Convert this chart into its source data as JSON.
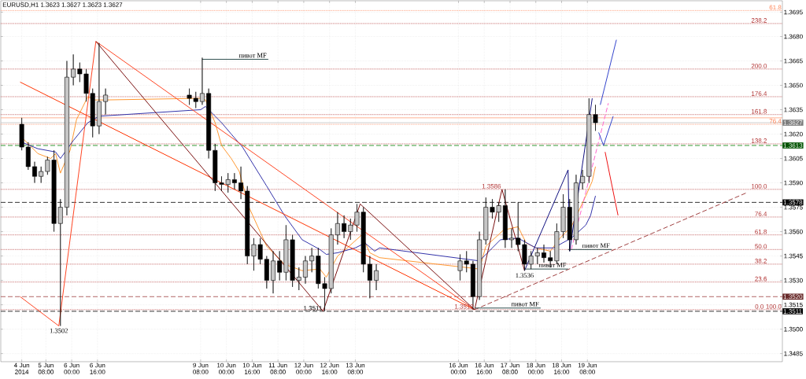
{
  "chart_data": {
    "type": "candlestick",
    "title": "EURUSD,H1 1.3623 1.3627 1.3623 1.3627",
    "x": [
      "2014-06-04T17:00",
      "2014-06-04T21:00",
      "2014-06-05T01:00",
      "2014-06-05T05:00",
      "2014-06-05T09:00",
      "2014-06-05T13:00",
      "2014-06-05T17:00",
      "2014-06-05T21:00",
      "2014-06-06T01:00",
      "2014-06-06T05:00",
      "2014-06-06T09:00",
      "2014-06-06T13:00",
      "2014-06-06T17:00",
      "2014-06-06T21:00",
      "2014-06-09T01:00",
      "2014-06-09T05:00",
      "2014-06-09T09:00",
      "2014-06-09T13:00",
      "2014-06-09T17:00",
      "2014-06-09T21:00",
      "2014-06-10T01:00",
      "2014-06-10T05:00",
      "2014-06-10T09:00",
      "2014-06-10T13:00",
      "2014-06-10T17:00",
      "2014-06-10T21:00",
      "2014-06-11T01:00",
      "2014-06-11T05:00",
      "2014-06-11T09:00",
      "2014-06-11T13:00",
      "2014-06-11T17:00",
      "2014-06-11T21:00",
      "2014-06-12T01:00",
      "2014-06-12T05:00",
      "2014-06-12T09:00",
      "2014-06-12T13:00",
      "2014-06-12T17:00",
      "2014-06-12T21:00",
      "2014-06-13T01:00",
      "2014-06-13T05:00",
      "2014-06-13T09:00",
      "2014-06-13T13:00",
      "2014-06-13T17:00",
      "2014-06-13T21:00",
      "2014-06-16T01:00",
      "2014-06-16T05:00",
      "2014-06-16T09:00",
      "2014-06-16T13:00",
      "2014-06-16T17:00",
      "2014-06-16T21:00",
      "2014-06-17T01:00",
      "2014-06-17T05:00",
      "2014-06-17T09:00",
      "2014-06-17T13:00",
      "2014-06-17T17:00",
      "2014-06-17T21:00",
      "2014-06-18T01:00",
      "2014-06-18T05:00",
      "2014-06-18T09:00",
      "2014-06-18T13:00",
      "2014-06-18T17:00",
      "2014-06-18T21:00",
      "2014-06-19T01:00",
      "2014-06-19T05:00",
      "2014-06-19T09:00",
      "2014-06-19T13:00"
    ],
    "ohlc": [
      [
        1.3626,
        1.363,
        1.361,
        1.3612
      ],
      [
        1.3612,
        1.3615,
        1.3598,
        1.36
      ],
      [
        1.36,
        1.3603,
        1.359,
        1.3594
      ],
      [
        1.3594,
        1.36,
        1.359,
        1.3597
      ],
      [
        1.3597,
        1.3606,
        1.3595,
        1.3604
      ],
      [
        1.3604,
        1.361,
        1.356,
        1.3565
      ],
      [
        1.3565,
        1.358,
        1.3502,
        1.3575
      ],
      [
        1.3575,
        1.3665,
        1.357,
        1.3655
      ],
      [
        1.3655,
        1.3669,
        1.365,
        1.366
      ],
      [
        1.366,
        1.3664,
        1.3652,
        1.3657
      ],
      [
        1.3657,
        1.366,
        1.364,
        1.3645
      ],
      [
        1.3645,
        1.3648,
        1.3618,
        1.3625
      ],
      [
        1.3625,
        1.3676,
        1.362,
        1.364
      ],
      [
        1.364,
        1.3648,
        1.3632,
        1.3644
      ],
      [
        1.3644,
        1.3648,
        1.3638,
        1.3642
      ],
      [
        1.3642,
        1.3646,
        1.3636,
        1.364
      ],
      [
        1.364,
        1.3667,
        1.3638,
        1.3645
      ],
      [
        1.3645,
        1.3648,
        1.3605,
        1.361
      ],
      [
        1.361,
        1.3614,
        1.3585,
        1.359
      ],
      [
        1.359,
        1.3594,
        1.3585,
        1.3589
      ],
      [
        1.3589,
        1.3596,
        1.3584,
        1.3592
      ],
      [
        1.3592,
        1.3596,
        1.3586,
        1.359
      ],
      [
        1.359,
        1.36,
        1.358,
        1.3585
      ],
      [
        1.3585,
        1.3588,
        1.354,
        1.3545
      ],
      [
        1.3545,
        1.3556,
        1.3536,
        1.3552
      ],
      [
        1.3552,
        1.3556,
        1.354,
        1.3543
      ],
      [
        1.3543,
        1.3545,
        1.3525,
        1.353
      ],
      [
        1.353,
        1.3548,
        1.3522,
        1.3542
      ],
      [
        1.3542,
        1.3548,
        1.353,
        1.3535
      ],
      [
        1.3535,
        1.3564,
        1.353,
        1.3555
      ],
      [
        1.3555,
        1.3558,
        1.3526,
        1.353
      ],
      [
        1.353,
        1.3538,
        1.3524,
        1.3532
      ],
      [
        1.3532,
        1.3545,
        1.3528,
        1.3542
      ],
      [
        1.3542,
        1.355,
        1.3535,
        1.3545
      ],
      [
        1.3545,
        1.355,
        1.3525,
        1.3528
      ],
      [
        1.3528,
        1.3532,
        1.3511,
        1.3525
      ],
      [
        1.3525,
        1.3562,
        1.3522,
        1.3558
      ],
      [
        1.3558,
        1.3572,
        1.3552,
        1.3565
      ],
      [
        1.3565,
        1.357,
        1.3556,
        1.356
      ],
      [
        1.356,
        1.3568,
        1.3555,
        1.3564
      ],
      [
        1.3564,
        1.3577,
        1.356,
        1.3572
      ],
      [
        1.3572,
        1.3575,
        1.3535,
        1.354
      ],
      [
        1.354,
        1.3545,
        1.3519,
        1.353
      ],
      [
        1.353,
        1.354,
        1.3524,
        1.3536
      ],
      [
        1.3536,
        1.3546,
        1.353,
        1.3542
      ],
      [
        1.3542,
        1.3548,
        1.3535,
        1.354
      ],
      [
        1.354,
        1.3542,
        1.3512,
        1.352
      ],
      [
        1.352,
        1.356,
        1.3518,
        1.3555
      ],
      [
        1.3555,
        1.3581,
        1.3552,
        1.3575
      ],
      [
        1.3575,
        1.358,
        1.3568,
        1.3572
      ],
      [
        1.3572,
        1.3578,
        1.3566,
        1.3576
      ],
      [
        1.3576,
        1.3586,
        1.355,
        1.3555
      ],
      [
        1.3555,
        1.3562,
        1.355,
        1.3556
      ],
      [
        1.3556,
        1.3578,
        1.3548,
        1.3552
      ],
      [
        1.3552,
        1.3555,
        1.3536,
        1.354
      ],
      [
        1.354,
        1.3548,
        1.3537,
        1.3545
      ],
      [
        1.3545,
        1.355,
        1.354,
        1.3547
      ],
      [
        1.3547,
        1.3552,
        1.3541,
        1.3544
      ],
      [
        1.3544,
        1.3548,
        1.3538,
        1.3542
      ],
      [
        1.3542,
        1.3565,
        1.354,
        1.356
      ],
      [
        1.356,
        1.3583,
        1.3556,
        1.3575
      ],
      [
        1.3575,
        1.358,
        1.3548,
        1.3555
      ],
      [
        1.3555,
        1.3595,
        1.3552,
        1.359
      ],
      [
        1.359,
        1.3598,
        1.3586,
        1.3594
      ],
      [
        1.3594,
        1.3642,
        1.359,
        1.3632
      ],
      [
        1.3632,
        1.3638,
        1.3622,
        1.3627
      ]
    ],
    "series": [
      {
        "type": "line",
        "color": "#ff9933",
        "x": [
          "2014-06-04T17:00",
          "2014-06-05T03:00",
          "2014-06-05T11:00",
          "2014-06-05T14:00",
          "2014-06-05T17:00",
          "2014-06-05T23:00",
          "2014-06-06T03:00",
          "2014-06-06T10:00",
          "2014-06-06T14:00",
          "2014-06-06T21:00",
          "2014-06-09T08:00",
          "2014-06-09T11:00",
          "2014-06-09T17:00",
          "2014-06-09T21:00",
          "2014-06-10T03:00",
          "2014-06-10T08:00",
          "2014-06-10T14:00",
          "2014-06-11T01:00",
          "2014-06-11T12:00",
          "2014-06-11T23:00",
          "2014-06-12T10:00",
          "2014-06-12T14:00",
          "2014-06-12T21:00",
          "2014-06-13T03:00",
          "2014-06-13T12:00",
          "2014-06-13T17:00",
          "2014-06-13T23:00",
          "2014-06-16T13:00",
          "2014-06-16T17:00",
          "2014-06-17T04:00",
          "2014-06-17T13:00",
          "2014-06-17T18:00",
          "2014-06-18T00:00",
          "2014-06-18T09:00",
          "2014-06-18T15:00",
          "2014-06-18T22:00",
          "2014-06-19T07:00",
          "2014-06-19T11:00",
          "2014-06-19T13:00"
        ],
        "values": [
          1.3618,
          1.3608,
          1.3605,
          1.3608,
          1.3596,
          1.361,
          1.3629,
          1.3643,
          1.3641,
          1.3641,
          1.3642,
          1.3641,
          1.3627,
          1.3613,
          1.3605,
          1.3597,
          1.3575,
          1.3551,
          1.354,
          1.3536,
          1.3537,
          1.3532,
          1.3545,
          1.355,
          1.3558,
          1.3547,
          1.3544,
          1.3537,
          1.3551,
          1.3561,
          1.3563,
          1.3553,
          1.355,
          1.3548,
          1.3556,
          1.3563,
          1.3582,
          1.3591,
          1.36
        ]
      },
      {
        "type": "line",
        "color": "#3333aa",
        "x": [
          "2014-06-04T17:00",
          "2014-06-05T03:00",
          "2014-06-05T14:00",
          "2014-06-05T17:00",
          "2014-06-06T01:00",
          "2014-06-06T10:00",
          "2014-06-06T17:00",
          "2014-06-09T08:00",
          "2014-06-09T11:00",
          "2014-06-09T21:00",
          "2014-06-10T03:00",
          "2014-06-10T10:00",
          "2014-06-11T01:00",
          "2014-06-11T12:00",
          "2014-06-11T23:00",
          "2014-06-12T10:00",
          "2014-06-12T14:00",
          "2014-06-12T21:00",
          "2014-06-13T08:00",
          "2014-06-13T14:00",
          "2014-06-13T20:00",
          "2014-06-13T23:00",
          "2014-06-16T13:00",
          "2014-06-17T02:00",
          "2014-06-17T13:00",
          "2014-06-18T00:00",
          "2014-06-18T11:00",
          "2014-06-18T22:00",
          "2014-06-19T07:00",
          "2014-06-19T10:00",
          "2014-06-19T13:00"
        ],
        "values": [
          1.3615,
          1.3611,
          1.3609,
          1.3605,
          1.3616,
          1.3627,
          1.3631,
          1.3635,
          1.3637,
          1.3627,
          1.362,
          1.3612,
          1.3588,
          1.357,
          1.3555,
          1.3549,
          1.3546,
          1.3547,
          1.355,
          1.3553,
          1.3548,
          1.355,
          1.3542,
          1.3555,
          1.3556,
          1.355,
          1.355,
          1.3556,
          1.3564,
          1.357,
          1.3582
        ]
      },
      {
        "type": "line",
        "color": "#ff3300",
        "x": [
          "2014-06-04T16:00",
          "2014-06-16T10:00"
        ],
        "values": [
          1.3652,
          1.3512
        ]
      },
      {
        "type": "line",
        "color": "#ff4422",
        "x": [
          "2014-06-04T16:00",
          "2014-06-05T16:00",
          "2014-06-06T15:00",
          "2014-06-16T10:00"
        ],
        "values": [
          1.352,
          1.3502,
          1.3677,
          1.3512
        ]
      },
      {
        "type": "line",
        "color": "#7a1010",
        "x": [
          "2014-06-06T15:00",
          "2014-06-12T12:00",
          "2014-06-13T11:00",
          "2014-06-16T10:00",
          "2014-06-17T03:00",
          "2014-06-17T17:00"
        ],
        "values": [
          1.3677,
          1.3511,
          1.3577,
          1.3512,
          1.3586,
          1.3536
        ]
      },
      {
        "type": "line",
        "color": "#101080",
        "x": [
          "2014-06-17T17:00",
          "2014-06-18T20:00",
          "2014-06-18T21:00",
          "2014-06-19T11:00"
        ],
        "values": [
          1.3536,
          1.3598,
          1.3548,
          1.3642
        ]
      },
      {
        "type": "line",
        "color": "#a04040",
        "line_style": "dashed",
        "x": [
          "2014-06-16T10:00",
          "2014-06-23T11:00"
        ],
        "values": [
          1.3512,
          1.3584
        ]
      },
      {
        "type": "line",
        "color": "#ff66cc",
        "line_style": "dashed",
        "x": [
          "2014-06-18T22:00",
          "2014-06-19T21:00"
        ],
        "values": [
          1.3549,
          1.3639
        ]
      },
      {
        "type": "line",
        "color": "#3344cc",
        "x": [
          "2014-06-19T16:00",
          "2014-06-20T02:00"
        ],
        "values": [
          1.3638,
          1.3678
        ]
      },
      {
        "type": "line",
        "color": "#3344cc",
        "x": [
          "2014-06-19T15:00",
          "2014-06-19T18:00",
          "2014-06-20T00:00"
        ],
        "values": [
          1.3621,
          1.3613,
          1.3631
        ]
      },
      {
        "type": "line",
        "color": "#ee1111",
        "x": [
          "2014-06-19T19:00",
          "2014-06-20T03:00"
        ],
        "values": [
          1.3609,
          1.357
        ]
      },
      {
        "type": "line",
        "color": "#2f4f4f",
        "x": [
          "2014-06-09T09:00",
          "2014-06-11T02:00"
        ],
        "values": [
          1.3666,
          1.3666
        ]
      },
      {
        "type": "line",
        "color": "#2f4f4f",
        "x": [
          "2014-06-16T10:00",
          "2014-06-18T03:00"
        ],
        "values": [
          1.3513,
          1.3513
        ]
      },
      {
        "type": "line",
        "color": "#2f4f4f",
        "x": [
          "2014-06-17T17:00",
          "2014-06-18T20:00"
        ],
        "values": [
          1.3537,
          1.3537
        ]
      },
      {
        "type": "line",
        "color": "#2f4f4f",
        "x": [
          "2014-06-18T20:00",
          "2014-06-19T23:00"
        ],
        "values": [
          1.3549,
          1.3549
        ]
      }
    ],
    "xlim": [
      "2014-06-04T04:00",
      "2014-06-24T09:00"
    ],
    "ylim": [
      1.348,
      1.3702
    ],
    "xticks": [
      {
        "value": "2014-06-04T17:00",
        "label": "4 Jun 2014"
      },
      {
        "value": "2014-06-05T08:00",
        "label": "5 Jun 08:00"
      },
      {
        "value": "2014-06-06T00:00",
        "label": "6 Jun 00:00"
      },
      {
        "value": "2014-06-06T16:00",
        "label": "6 Jun 16:00"
      },
      {
        "value": "2014-06-09T08:00",
        "label": "9 Jun 08:00"
      },
      {
        "value": "2014-06-10T00:00",
        "label": "10 Jun 00:00"
      },
      {
        "value": "2014-06-10T16:00",
        "label": "10 Jun 16:00"
      },
      {
        "value": "2014-06-11T08:00",
        "label": "11 Jun 08:00"
      },
      {
        "value": "2014-06-12T00:00",
        "label": "12 Jun 00:00"
      },
      {
        "value": "2014-06-12T16:00",
        "label": "12 Jun 16:00"
      },
      {
        "value": "2014-06-13T08:00",
        "label": "13 Jun 08:00"
      },
      {
        "value": "2014-06-16T00:00",
        "label": "16 Jun 00:00"
      },
      {
        "value": "2014-06-16T16:00",
        "label": "16 Jun 16:00"
      },
      {
        "value": "2014-06-17T08:00",
        "label": "17 Jun 08:00"
      },
      {
        "value": "2014-06-18T00:00",
        "label": "18 Jun 00:00"
      },
      {
        "value": "2014-06-18T16:00",
        "label": "18 Jun 16:00"
      },
      {
        "value": "2014-06-19T08:00",
        "label": "19 Jun 08:00"
      }
    ],
    "yticks": [
      1.3485,
      {
        "value": 1.35,
        "label": "1.3500"
      },
      1.3515,
      {
        "value": 1.353,
        "label": "1.3530"
      },
      1.3545,
      {
        "value": 1.356,
        "label": "1.3560"
      },
      1.3575,
      {
        "value": 1.359,
        "label": "1.3590"
      },
      1.3605,
      {
        "value": 1.362,
        "label": "1.3620"
      },
      1.3635,
      {
        "value": 1.365,
        "label": "1.3650"
      },
      1.3665,
      {
        "value": 1.368,
        "label": "1.3680"
      },
      1.3695
    ],
    "grid": true,
    "ref_lines": [
      {
        "axis": "y",
        "value": 1.3696,
        "color": "#ff7f50",
        "line_style": "dotted"
      },
      {
        "axis": "y",
        "value": 1.3626,
        "color": "#ff7f50",
        "line_style": "dotted"
      },
      {
        "axis": "y",
        "value": 1.3688,
        "color": "#b03030",
        "line_style": "dotted"
      },
      {
        "axis": "y",
        "value": 1.366,
        "color": "#b03030",
        "line_style": "dotted"
      },
      {
        "axis": "y",
        "value": 1.3643,
        "color": "#b03030",
        "line_style": "dotted"
      },
      {
        "axis": "y",
        "value": 1.3632,
        "color": "#b03030",
        "line_style": "dotted"
      },
      {
        "axis": "y",
        "value": 1.3614,
        "color": "#b03030",
        "line_style": "dotted"
      },
      {
        "axis": "y",
        "value": 1.3586,
        "color": "#b03030",
        "line_style": "dotted"
      },
      {
        "axis": "y",
        "value": 1.3569,
        "color": "#b03030",
        "line_style": "dotted"
      },
      {
        "axis": "y",
        "value": 1.3558,
        "color": "#b03030",
        "line_style": "dotted"
      },
      {
        "axis": "y",
        "value": 1.3549,
        "color": "#b03030",
        "line_style": "dotted"
      },
      {
        "axis": "y",
        "value": 1.354,
        "color": "#b03030",
        "line_style": "dotted"
      },
      {
        "axis": "y",
        "value": 1.3529,
        "color": "#b03030",
        "line_style": "dotted"
      },
      {
        "axis": "y",
        "value": 1.3512,
        "color": "#b03030",
        "line_style": "dotted"
      },
      {
        "axis": "y",
        "value": 1.363,
        "color": "#ffa07a",
        "line_style": "solid"
      },
      {
        "axis": "y",
        "value": 1.3627,
        "label": "1.3627",
        "color": "#c0c0c0",
        "line_style": "solid"
      },
      {
        "axis": "y",
        "value": 1.3613,
        "label": "1.3613",
        "color": "#008000",
        "line_style": "dashed"
      },
      {
        "axis": "y",
        "value": 1.3578,
        "label": "1.3578",
        "color": "#000000",
        "line_style": "dashed"
      },
      {
        "axis": "y",
        "value": 1.352,
        "label": "1.3520",
        "color": "#a04040",
        "line_style": "dashed"
      },
      {
        "axis": "y",
        "value": 1.3511,
        "label": "1.3511",
        "color": "#000000",
        "line_style": "dashed"
      }
    ],
    "annotations": [
      {
        "text": "1.3502",
        "x": "2014-06-05T16:00",
        "y": 1.3502
      },
      {
        "text": "1.3511",
        "x": "2014-06-12T12:00",
        "y": 1.3511
      },
      {
        "text": "1.3512",
        "x": "2014-06-16T10:00",
        "y": 1.3512
      },
      {
        "text": "1.3586",
        "x": "2014-06-17T03:00",
        "y": 1.3586
      },
      {
        "text": "1.3536",
        "x": "2014-06-17T17:00",
        "y": 1.3536
      },
      {
        "text": "пивот MF",
        "x": "2014-06-11T02:00",
        "y": 1.3666
      },
      {
        "text": "пивот MF",
        "x": "2014-06-18T03:00",
        "y": 1.3513
      },
      {
        "text": "пивот MF",
        "x": "2014-06-18T20:00",
        "y": 1.3537
      },
      {
        "text": "пивот MF",
        "x": "2014-06-19T23:00",
        "y": 1.3549
      },
      {
        "text": "61.8",
        "x": "2014-06-24T09:00",
        "y": 1.3696
      },
      {
        "text": "76.4",
        "x": "2014-06-24T09:00",
        "y": 1.3626
      },
      {
        "text": "100.0",
        "x": "2014-06-24T09:00",
        "y": 1.3512
      },
      {
        "text": "238.2",
        "x": "2014-06-24T00:00",
        "y": 1.3688
      },
      {
        "text": "200.0",
        "x": "2014-06-24T00:00",
        "y": 1.366
      },
      {
        "text": "176.4",
        "x": "2014-06-24T00:00",
        "y": 1.3643
      },
      {
        "text": "161.8",
        "x": "2014-06-24T00:00",
        "y": 1.3632
      },
      {
        "text": "138.2",
        "x": "2014-06-24T00:00",
        "y": 1.3614
      },
      {
        "text": "100.0",
        "x": "2014-06-24T00:00",
        "y": 1.3586
      },
      {
        "text": "76.4",
        "x": "2014-06-24T00:00",
        "y": 1.3569
      },
      {
        "text": "61.8",
        "x": "2014-06-24T00:00",
        "y": 1.3558
      },
      {
        "text": "50.0",
        "x": "2014-06-24T00:00",
        "y": 1.3549
      },
      {
        "text": "38.2",
        "x": "2014-06-24T00:00",
        "y": 1.354
      },
      {
        "text": "23.6",
        "x": "2014-06-24T00:00",
        "y": 1.3529
      },
      {
        "text": "0.0",
        "x": "2014-06-23T22:00",
        "y": 1.3512
      }
    ]
  }
}
